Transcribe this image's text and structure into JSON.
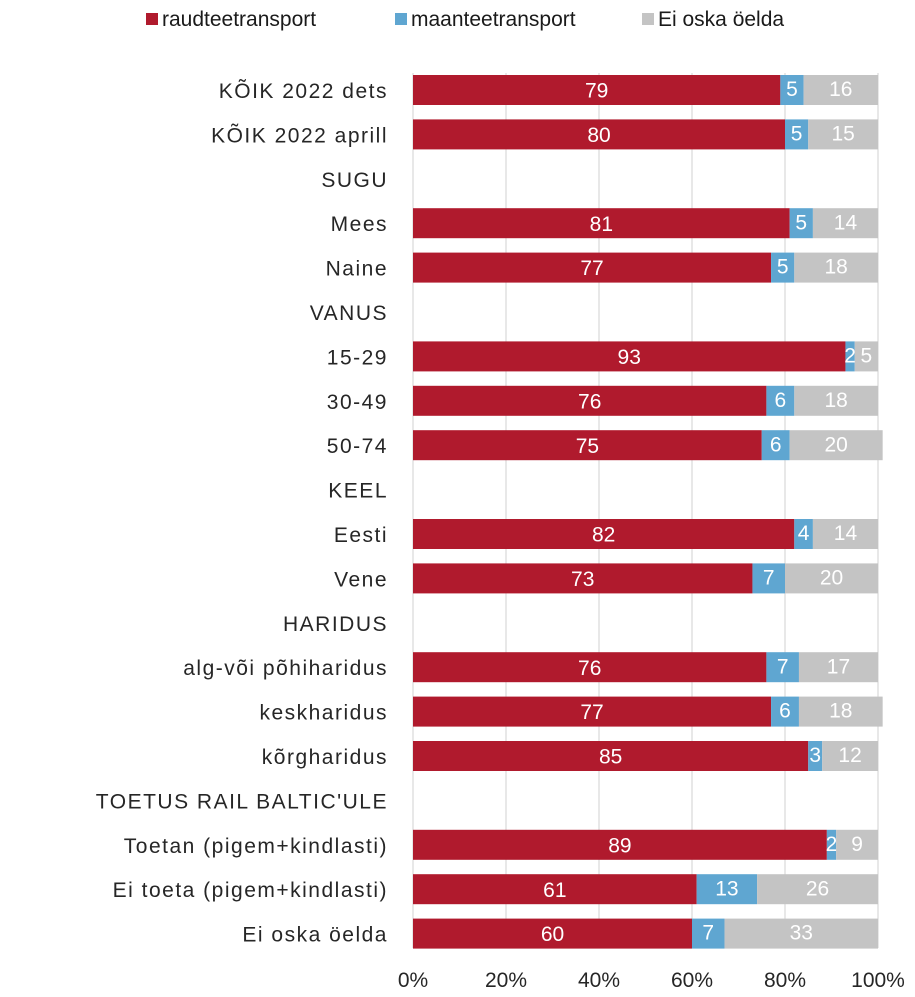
{
  "chart_data": {
    "type": "bar",
    "orientation": "horizontal",
    "stacked": true,
    "percent_scale": true,
    "categories": [
      "KÕIK 2022 dets",
      "KÕIK 2022 aprill",
      "SUGU",
      "Mees",
      "Naine",
      "VANUS",
      "15-29",
      "30-49",
      "50-74",
      "KEEL",
      "Eesti",
      "Vene",
      "HARIDUS",
      "alg-või põhiharidus",
      "keskharidus",
      "kõrgharidus",
      "TOETUS RAIL BALTIC'ULE",
      "Toetan (pigem+kindlasti)",
      "Ei toeta (pigem+kindlasti)",
      "Ei oska öelda"
    ],
    "series": [
      {
        "name": "raudteetransport",
        "color": "#B01A2D",
        "label_color": "#ffffff",
        "values": [
          79,
          80,
          null,
          81,
          77,
          null,
          93,
          76,
          75,
          null,
          82,
          73,
          null,
          76,
          77,
          85,
          null,
          89,
          61,
          60
        ]
      },
      {
        "name": "maanteetransport",
        "color": "#5FA6D1",
        "label_color": "#ffffff",
        "values": [
          5,
          5,
          null,
          5,
          5,
          null,
          2,
          6,
          6,
          null,
          4,
          7,
          null,
          7,
          6,
          3,
          null,
          2,
          13,
          7
        ]
      },
      {
        "name": "Ei oska öelda",
        "color": "#C4C4C4",
        "label_color": "#ffffff",
        "values": [
          16,
          15,
          null,
          14,
          18,
          null,
          5,
          18,
          20,
          null,
          14,
          20,
          null,
          17,
          18,
          12,
          null,
          9,
          26,
          33
        ]
      }
    ],
    "xlim": [
      0,
      100
    ],
    "x_ticks": [
      "0%",
      "20%",
      "40%",
      "60%",
      "80%",
      "100%"
    ],
    "grid": true,
    "legend_position": "top",
    "title": "",
    "xlabel": "",
    "ylabel": ""
  }
}
